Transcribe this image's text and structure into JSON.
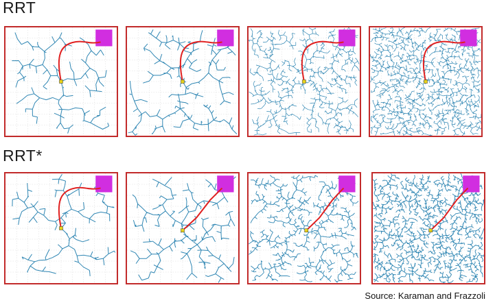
{
  "labels": {
    "rrt": "RRT",
    "rrt_star": "RRT*"
  },
  "source": "Source: Karaman and Frazzoli",
  "colors": {
    "tree": "#2f86b3",
    "path": "#e02020",
    "goal": "#d12ee0",
    "start": "#e8d21a",
    "border": "#c22a2a",
    "grid": "#cfcfcf"
  },
  "panels": [
    {
      "algorithm": "RRT",
      "density": "low"
    },
    {
      "algorithm": "RRT",
      "density": "low-medium"
    },
    {
      "algorithm": "RRT",
      "density": "high"
    },
    {
      "algorithm": "RRT",
      "density": "very-high"
    },
    {
      "algorithm": "RRT*",
      "density": "low"
    },
    {
      "algorithm": "RRT*",
      "density": "low-medium"
    },
    {
      "algorithm": "RRT*",
      "density": "high"
    },
    {
      "algorithm": "RRT*",
      "density": "very-high"
    }
  ]
}
